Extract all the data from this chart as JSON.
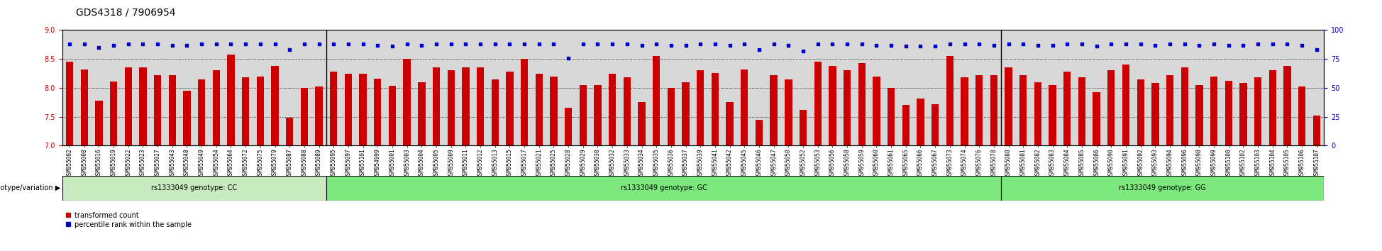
{
  "title": "GDS4318 / 7906954",
  "samples_cc": [
    "GSM955002",
    "GSM955008",
    "GSM955016",
    "GSM955019",
    "GSM955022",
    "GSM955023",
    "GSM955027",
    "GSM955043",
    "GSM955048",
    "GSM955049",
    "GSM955054",
    "GSM955064",
    "GSM955072",
    "GSM955075",
    "GSM955079",
    "GSM955087",
    "GSM955088",
    "GSM955089"
  ],
  "values_cc": [
    8.45,
    8.32,
    7.78,
    8.11,
    8.35,
    8.35,
    8.22,
    8.22,
    7.95,
    8.15,
    8.3,
    8.58,
    8.18,
    8.2,
    8.38,
    7.48,
    8.0,
    8.02
  ],
  "pct_cc": [
    88,
    88,
    85,
    87,
    88,
    88,
    88,
    87,
    87,
    88,
    88,
    88,
    88,
    88,
    88,
    83,
    88,
    88
  ],
  "samples_gc": [
    "GSM955095",
    "GSM955097",
    "GSM955101",
    "GSM954999",
    "GSM955001",
    "GSM955003",
    "GSM955004",
    "GSM955005",
    "GSM955009",
    "GSM955011",
    "GSM955012",
    "GSM955013",
    "GSM955015",
    "GSM955017",
    "GSM955021",
    "GSM955025",
    "GSM955028",
    "GSM955029",
    "GSM955030",
    "GSM955032",
    "GSM955033",
    "GSM955034",
    "GSM955035",
    "GSM955036",
    "GSM955037",
    "GSM955039",
    "GSM955041",
    "GSM955042",
    "GSM955045",
    "GSM955046",
    "GSM955047",
    "GSM955050",
    "GSM955052",
    "GSM955053",
    "GSM955056",
    "GSM955058",
    "GSM955059",
    "GSM955060",
    "GSM955061",
    "GSM955065",
    "GSM955066",
    "GSM955067",
    "GSM955073",
    "GSM955074",
    "GSM955076",
    "GSM955078"
  ],
  "values_gc": [
    8.28,
    8.24,
    8.24,
    8.16,
    8.03,
    8.5,
    8.1,
    8.35,
    8.3,
    8.35,
    8.35,
    8.15,
    8.28,
    8.5,
    8.25,
    8.2,
    7.65,
    8.05,
    8.05,
    8.25,
    8.18,
    7.75,
    8.55,
    8.0,
    8.1,
    8.3,
    8.26,
    7.75,
    8.32,
    7.45,
    8.22,
    8.15,
    7.62,
    8.45,
    8.38,
    8.3,
    8.43,
    8.2,
    8.0,
    7.7,
    7.82,
    7.72,
    8.55,
    8.18,
    8.22,
    8.22
  ],
  "pct_gc": [
    88,
    88,
    88,
    87,
    86,
    88,
    87,
    88,
    88,
    88,
    88,
    88,
    88,
    88,
    88,
    88,
    76,
    88,
    88,
    88,
    88,
    87,
    88,
    87,
    87,
    88,
    88,
    87,
    88,
    83,
    88,
    87,
    82,
    88,
    88,
    88,
    88,
    87,
    87,
    86,
    86,
    86,
    88,
    88,
    88,
    87
  ],
  "samples_gg": [
    "GSM955080",
    "GSM955081",
    "GSM955082",
    "GSM955083",
    "GSM955084",
    "GSM955085",
    "GSM955086",
    "GSM955090",
    "GSM955091",
    "GSM955092",
    "GSM955093",
    "GSM955094",
    "GSM955096",
    "GSM955098",
    "GSM955099",
    "GSM955100",
    "GSM955102",
    "GSM955103",
    "GSM955104",
    "GSM955105",
    "GSM955106",
    "GSM955107"
  ],
  "values_gg": [
    8.35,
    8.22,
    8.1,
    8.05,
    8.28,
    8.18,
    7.92,
    8.3,
    8.4,
    8.15,
    8.08,
    8.22,
    8.35,
    8.05,
    8.2,
    8.12,
    8.08,
    8.18,
    8.3,
    8.38,
    8.02,
    7.52
  ],
  "pct_gg": [
    88,
    88,
    87,
    87,
    88,
    88,
    86,
    88,
    88,
    88,
    87,
    88,
    88,
    87,
    88,
    87,
    87,
    88,
    88,
    88,
    87,
    83
  ],
  "bar_color": "#cc0000",
  "dot_color": "#0000cc",
  "ylim_left": [
    7.0,
    9.0
  ],
  "yticks_left": [
    7.0,
    7.5,
    8.0,
    8.5,
    9.0
  ],
  "ylim_right": [
    0,
    100
  ],
  "yticks_right": [
    0,
    25,
    50,
    75,
    100
  ],
  "cc_label": "rs1333049 genotype: CC",
  "gc_label": "rs1333049 genotype: GC",
  "gg_label": "rs1333049 genotype: GG",
  "genotype_label": "genotype/variation",
  "legend_red": "transformed count",
  "legend_blue": "percentile rank within the sample",
  "group_bg_cc": "#c8eac0",
  "group_bg_gc": "#7de87d",
  "group_bg_gg": "#7de87d",
  "tick_label_color": "#cc0000",
  "right_tick_color": "#0000cc",
  "plot_bg_color": "#d8d8d8",
  "title_fontsize": 10,
  "tick_fontsize": 5.5
}
